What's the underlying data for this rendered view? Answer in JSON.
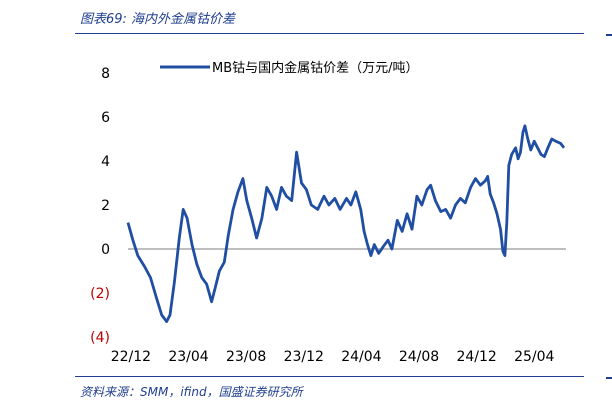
{
  "figure_title": "图表69: 海内外金属钴价差",
  "source": "资料来源：SMM，ifind，国盛证券研究所",
  "colors": {
    "accent": "#1f3e8f",
    "line": "#1f4ea3",
    "negative_tick": "#c00000",
    "axis": "#7f7f7f"
  },
  "chart_data": {
    "type": "line",
    "title": "",
    "xlabel": "",
    "ylabel": "",
    "ylim": [
      -4,
      8
    ],
    "y_ticks": [
      {
        "value": 8,
        "label": "8"
      },
      {
        "value": 6,
        "label": "6"
      },
      {
        "value": 4,
        "label": "4"
      },
      {
        "value": 2,
        "label": "2"
      },
      {
        "value": 0,
        "label": "0"
      },
      {
        "value": -2,
        "label": "(2)"
      },
      {
        "value": -4,
        "label": "(4)"
      }
    ],
    "x_ticks": [
      "22/12",
      "23/04",
      "23/08",
      "23/12",
      "24/04",
      "24/08",
      "24/12",
      "25/04"
    ],
    "legend": "top-center",
    "series": [
      {
        "name": "MB钴与国内金属钴价差（万元/吨）",
        "points": [
          [
            "2022-12-05",
            1.2
          ],
          [
            "2022-12-15",
            0.4
          ],
          [
            "2022-12-25",
            -0.3
          ],
          [
            "2023-01-08",
            -0.8
          ],
          [
            "2023-01-20",
            -1.3
          ],
          [
            "2023-02-01",
            -2.2
          ],
          [
            "2023-02-12",
            -3.0
          ],
          [
            "2023-02-22",
            -3.3
          ],
          [
            "2023-03-01",
            -3.0
          ],
          [
            "2023-03-10",
            -1.5
          ],
          [
            "2023-03-20",
            0.5
          ],
          [
            "2023-03-28",
            1.8
          ],
          [
            "2023-04-05",
            1.4
          ],
          [
            "2023-04-15",
            0.2
          ],
          [
            "2023-04-25",
            -0.7
          ],
          [
            "2023-05-05",
            -1.3
          ],
          [
            "2023-05-15",
            -1.6
          ],
          [
            "2023-05-25",
            -2.4
          ],
          [
            "2023-06-01",
            -1.8
          ],
          [
            "2023-06-10",
            -1.0
          ],
          [
            "2023-06-20",
            -0.6
          ],
          [
            "2023-06-28",
            0.6
          ],
          [
            "2023-07-08",
            1.8
          ],
          [
            "2023-07-18",
            2.6
          ],
          [
            "2023-07-28",
            3.2
          ],
          [
            "2023-08-05",
            2.2
          ],
          [
            "2023-08-15",
            1.4
          ],
          [
            "2023-08-25",
            0.5
          ],
          [
            "2023-09-05",
            1.4
          ],
          [
            "2023-09-15",
            2.8
          ],
          [
            "2023-09-25",
            2.4
          ],
          [
            "2023-10-05",
            1.8
          ],
          [
            "2023-10-15",
            2.8
          ],
          [
            "2023-10-25",
            2.4
          ],
          [
            "2023-11-05",
            2.2
          ],
          [
            "2023-11-15",
            4.4
          ],
          [
            "2023-11-25",
            3.0
          ],
          [
            "2023-12-05",
            2.7
          ],
          [
            "2023-12-15",
            2.0
          ],
          [
            "2023-12-28",
            1.8
          ],
          [
            "2024-01-10",
            2.4
          ],
          [
            "2024-01-20",
            2.0
          ],
          [
            "2024-02-01",
            2.3
          ],
          [
            "2024-02-12",
            1.8
          ],
          [
            "2024-02-25",
            2.3
          ],
          [
            "2024-03-05",
            2.0
          ],
          [
            "2024-03-15",
            2.6
          ],
          [
            "2024-03-25",
            1.8
          ],
          [
            "2024-04-01",
            0.8
          ],
          [
            "2024-04-08",
            0.2
          ],
          [
            "2024-04-15",
            -0.3
          ],
          [
            "2024-04-22",
            0.2
          ],
          [
            "2024-05-01",
            -0.2
          ],
          [
            "2024-05-10",
            0.1
          ],
          [
            "2024-05-20",
            0.4
          ],
          [
            "2024-05-28",
            0.0
          ],
          [
            "2024-06-08",
            1.3
          ],
          [
            "2024-06-18",
            0.8
          ],
          [
            "2024-06-28",
            1.6
          ],
          [
            "2024-07-08",
            0.9
          ],
          [
            "2024-07-18",
            2.4
          ],
          [
            "2024-07-28",
            2.0
          ],
          [
            "2024-08-08",
            2.7
          ],
          [
            "2024-08-15",
            2.9
          ],
          [
            "2024-08-25",
            2.2
          ],
          [
            "2024-09-05",
            1.7
          ],
          [
            "2024-09-15",
            1.8
          ],
          [
            "2024-09-25",
            1.4
          ],
          [
            "2024-10-05",
            2.0
          ],
          [
            "2024-10-15",
            2.3
          ],
          [
            "2024-10-25",
            2.1
          ],
          [
            "2024-11-05",
            2.8
          ],
          [
            "2024-11-15",
            3.2
          ],
          [
            "2024-11-25",
            2.9
          ],
          [
            "2024-12-05",
            3.1
          ],
          [
            "2024-12-10",
            3.3
          ],
          [
            "2024-12-15",
            2.5
          ],
          [
            "2024-12-22",
            2.1
          ],
          [
            "2024-12-29",
            1.6
          ],
          [
            "2025-01-05",
            0.9
          ],
          [
            "2025-01-10",
            -0.1
          ],
          [
            "2025-01-14",
            -0.3
          ],
          [
            "2025-01-18",
            1.2
          ],
          [
            "2025-01-22",
            3.8
          ],
          [
            "2025-01-28",
            4.3
          ],
          [
            "2025-02-05",
            4.6
          ],
          [
            "2025-02-10",
            4.1
          ],
          [
            "2025-02-15",
            4.4
          ],
          [
            "2025-02-20",
            5.3
          ],
          [
            "2025-02-24",
            5.6
          ],
          [
            "2025-03-02",
            5.0
          ],
          [
            "2025-03-08",
            4.5
          ],
          [
            "2025-03-15",
            4.9
          ],
          [
            "2025-03-22",
            4.6
          ],
          [
            "2025-03-29",
            4.3
          ],
          [
            "2025-04-05",
            4.2
          ],
          [
            "2025-04-12",
            4.6
          ],
          [
            "2025-04-20",
            5.0
          ],
          [
            "2025-04-28",
            4.9
          ],
          [
            "2025-05-08",
            4.8
          ],
          [
            "2025-05-15",
            4.6
          ]
        ]
      }
    ]
  }
}
